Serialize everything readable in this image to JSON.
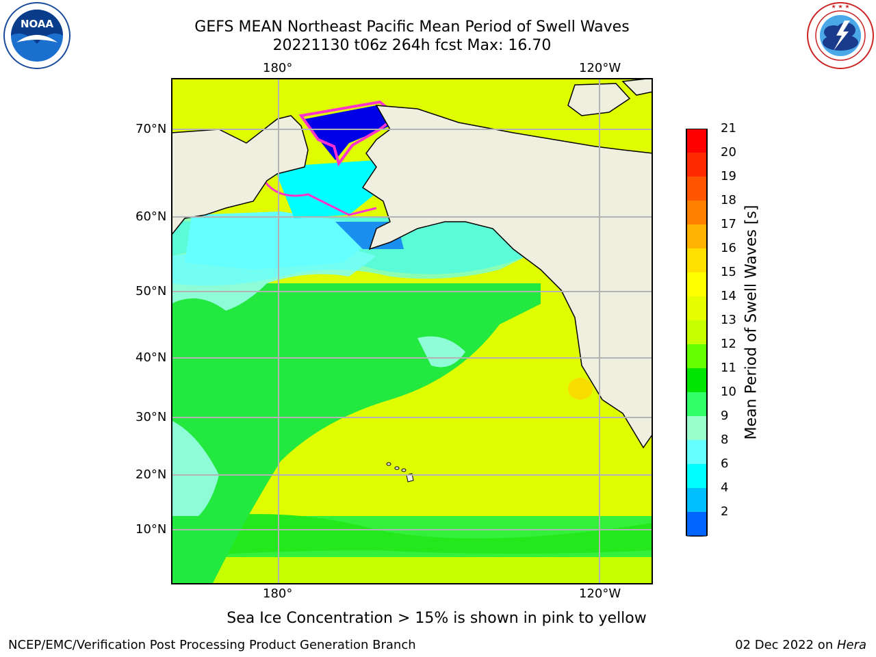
{
  "header": {
    "title_line1": "GEFS MEAN Northeast Pacific Mean Period of Swell Waves",
    "title_line2": "20221130 t06z 264h fcst   Max: 16.70"
  },
  "logos": {
    "left": {
      "name": "noaa-logo",
      "text": "NOAA",
      "ring_text": "NATIONAL OCEANIC AND ATMOSPHERIC ADMINISTRATION · U.S. DEPARTMENT OF COMMERCE"
    },
    "right": {
      "name": "nws-logo",
      "ring_text": "NATIONAL WEATHER SERVICE"
    }
  },
  "map": {
    "lon_ticks_top": [
      "180°",
      "120°W"
    ],
    "lon_ticks_bottom": [
      "180°",
      "120°W"
    ],
    "lat_ticks": [
      "70°N",
      "60°N",
      "50°N",
      "40°N",
      "30°N",
      "20°N",
      "10°N"
    ],
    "grid": true
  },
  "colorbar": {
    "title": "Mean Period of Swell Waves [s]",
    "labels": [
      "21",
      "20",
      "19",
      "18",
      "17",
      "16",
      "15",
      "14",
      "13",
      "12",
      "11",
      "10",
      "9",
      "8",
      "6",
      "4",
      "2"
    ],
    "colors": [
      "#ff0000",
      "#ff2a00",
      "#ff5500",
      "#ff8000",
      "#ffb300",
      "#ffdf00",
      "#ffff00",
      "#e6ff00",
      "#c7ff00",
      "#66ff00",
      "#00e600",
      "#33ff66",
      "#99ffcc",
      "#66ffff",
      "#00ffff",
      "#00bfff",
      "#0066ff"
    ],
    "extend_color": "#0000ff"
  },
  "footer": {
    "note": "Sea Ice Concentration > 15% is shown in pink to yellow",
    "credit": "NCEP/EMC/Verification Post Processing Product Generation Branch",
    "date_prefix": "02 Dec 2022 on ",
    "date_host": "Hera"
  }
}
